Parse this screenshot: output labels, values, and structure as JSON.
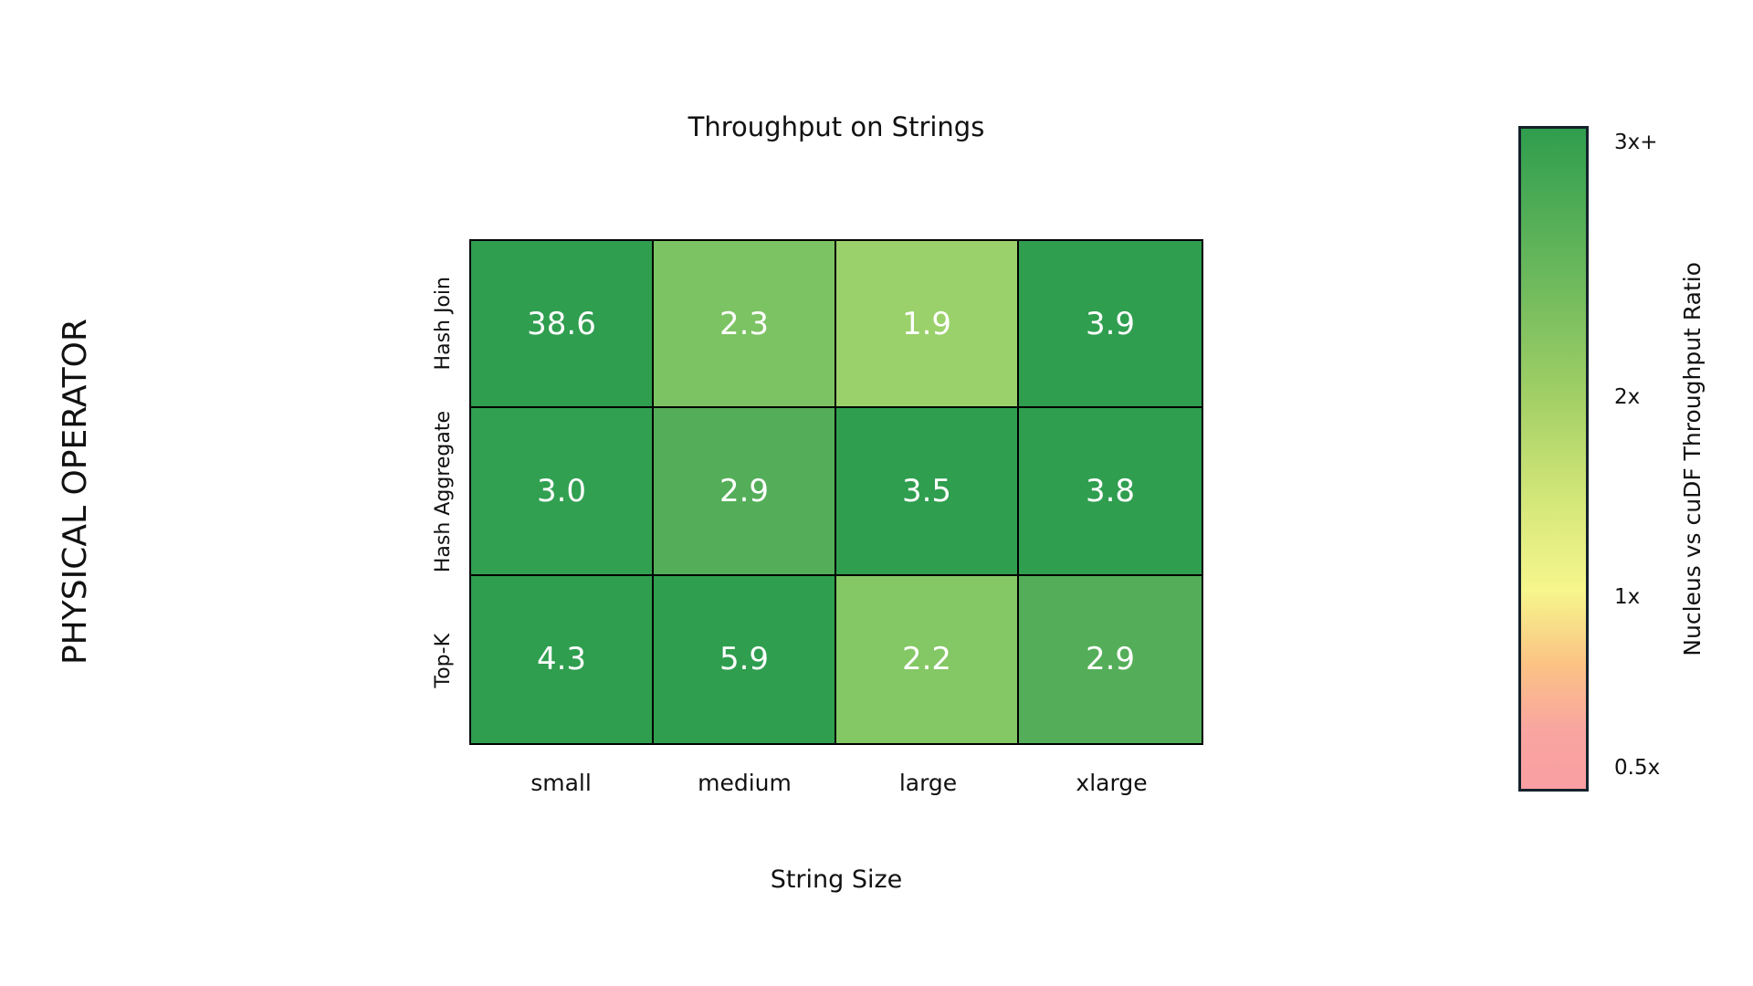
{
  "chart_data": {
    "type": "heatmap",
    "title": "Throughput on Strings",
    "xlabel": "String Size",
    "ylabel": "PHYSICAL OPERATOR",
    "categories_x": [
      "small",
      "medium",
      "large",
      "xlarge"
    ],
    "categories_y": [
      "Hash Join",
      "Hash Aggregate",
      "Top-K"
    ],
    "series": [
      {
        "name": "Hash Join",
        "values": [
          38.6,
          2.3,
          1.9,
          3.9
        ]
      },
      {
        "name": "Hash Aggregate",
        "values": [
          3.0,
          2.9,
          3.5,
          3.8
        ]
      },
      {
        "name": "Top-K",
        "values": [
          4.3,
          5.9,
          2.2,
          2.9
        ]
      }
    ],
    "cells": [
      [
        {
          "label": "38.6",
          "color": "#2f9e4f"
        },
        {
          "label": "2.3",
          "color": "#7cc363"
        },
        {
          "label": "1.9",
          "color": "#9ad16b"
        },
        {
          "label": "3.9",
          "color": "#2f9e4f"
        }
      ],
      [
        {
          "label": "3.0",
          "color": "#31a051"
        },
        {
          "label": "2.9",
          "color": "#54ae59"
        },
        {
          "label": "3.5",
          "color": "#2f9e4f"
        },
        {
          "label": "3.8",
          "color": "#2f9e4f"
        }
      ],
      [
        {
          "label": "4.3",
          "color": "#2f9e4f"
        },
        {
          "label": "5.9",
          "color": "#2f9e4f"
        },
        {
          "label": "2.2",
          "color": "#84c765"
        },
        {
          "label": "2.9",
          "color": "#54ae59"
        }
      ]
    ],
    "value_text_color": "#ffffff",
    "grid_line_color": "#000000",
    "colorbar": {
      "label": "Nucleus vs cuDF Throughput Ratio",
      "ticks": [
        {
          "label": "3x+",
          "pos_pct": 2.5
        },
        {
          "label": "2x",
          "pos_pct": 40.7
        },
        {
          "label": "1x",
          "pos_pct": 70.8
        },
        {
          "label": "0.5x",
          "pos_pct": 96.5
        }
      ],
      "gradient_stops": [
        {
          "color": "#2f9e4e",
          "pct": 0
        },
        {
          "color": "#6ab85c",
          "pct": 22
        },
        {
          "color": "#a3d066",
          "pct": 41
        },
        {
          "color": "#d9e97b",
          "pct": 58
        },
        {
          "color": "#f6f68c",
          "pct": 70
        },
        {
          "color": "#fbc384",
          "pct": 81
        },
        {
          "color": "#f9a5a0",
          "pct": 91
        },
        {
          "color": "#f99fa3",
          "pct": 100
        }
      ]
    },
    "legend_position": "right",
    "grid": false
  }
}
